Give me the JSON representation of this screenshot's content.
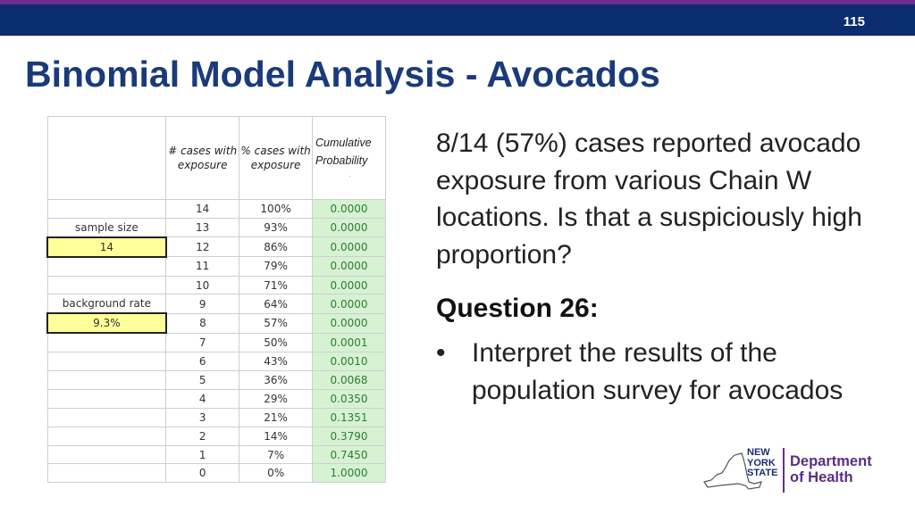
{
  "slide": {
    "number": "115",
    "title": "Binomial Model Analysis - Avocados"
  },
  "table": {
    "headers": {
      "cases": "# cases with exposure",
      "pct": "% cases with exposure",
      "cum": "Cumulative Probability",
      "cum_mark": "."
    },
    "side": {
      "sample_size_label": "sample size",
      "sample_size_value": "14",
      "background_rate_label": "background rate",
      "background_rate_value": "9.3%"
    },
    "rows": [
      {
        "cases": "14",
        "pct": "100%",
        "prob": "0.0000"
      },
      {
        "cases": "13",
        "pct": "93%",
        "prob": "0.0000"
      },
      {
        "cases": "12",
        "pct": "86%",
        "prob": "0.0000"
      },
      {
        "cases": "11",
        "pct": "79%",
        "prob": "0.0000"
      },
      {
        "cases": "10",
        "pct": "71%",
        "prob": "0.0000"
      },
      {
        "cases": "9",
        "pct": "64%",
        "prob": "0.0000"
      },
      {
        "cases": "8",
        "pct": "57%",
        "prob": "0.0000"
      },
      {
        "cases": "7",
        "pct": "50%",
        "prob": "0.0001"
      },
      {
        "cases": "6",
        "pct": "43%",
        "prob": "0.0010"
      },
      {
        "cases": "5",
        "pct": "36%",
        "prob": "0.0068"
      },
      {
        "cases": "4",
        "pct": "29%",
        "prob": "0.0350"
      },
      {
        "cases": "3",
        "pct": "21%",
        "prob": "0.1351"
      },
      {
        "cases": "2",
        "pct": "14%",
        "prob": "0.3790"
      },
      {
        "cases": "1",
        "pct": "7%",
        "prob": "0.7450"
      },
      {
        "cases": "0",
        "pct": "0%",
        "prob": "1.0000"
      }
    ],
    "colors": {
      "probability_fill": "#d6f2d3",
      "highlight_fill": "#ffff99"
    }
  },
  "content": {
    "paragraph": "8/14 (57%) cases reported avocado exposure from various Chain W locations. Is that a suspiciously high proportion?",
    "question": "Question 26:",
    "bullet_symbol": "•",
    "bullet": "Interpret the results of the population survey for avocados"
  },
  "logo": {
    "state_line1": "NEW",
    "state_line2": "YORK",
    "state_line3": "STATE",
    "dept_line1": "Department",
    "dept_line2": "of Health"
  },
  "colors": {
    "top_bar": "#0b2c6e",
    "top_accent": "#6b2d8e",
    "title": "#1a3a7a"
  }
}
